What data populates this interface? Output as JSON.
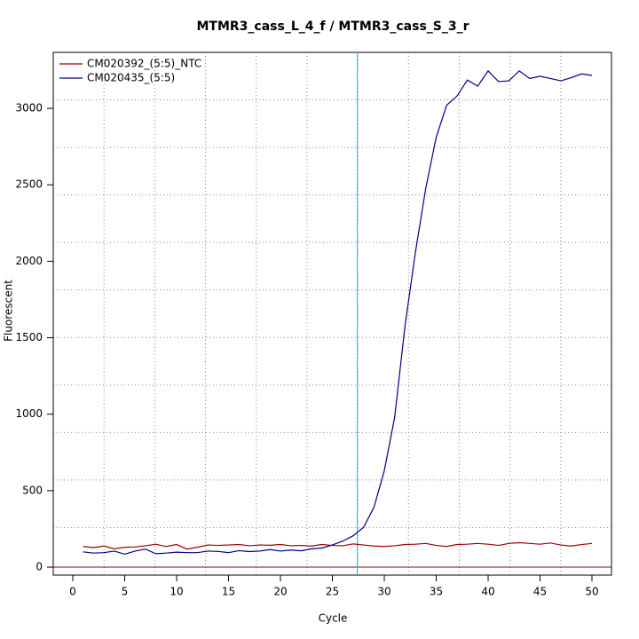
{
  "chart_data": {
    "type": "line",
    "title": "MTMR3_cass_L_4_f / MTMR3_cass_S_3_r",
    "x_label": "Cycle",
    "y_label": "Fluorescent",
    "x": [
      1,
      2,
      3,
      4,
      5,
      6,
      7,
      8,
      9,
      10,
      11,
      12,
      13,
      14,
      15,
      16,
      17,
      18,
      19,
      20,
      21,
      22,
      23,
      24,
      25,
      26,
      27,
      28,
      29,
      30,
      31,
      32,
      33,
      34,
      35,
      36,
      37,
      38,
      39,
      40,
      41,
      42,
      43,
      44,
      45,
      46,
      47,
      48,
      49,
      50
    ],
    "series": [
      {
        "name": "CM020392_(5:5)_NTC",
        "color": "#a00000",
        "values": [
          135,
          128,
          138,
          120,
          130,
          132,
          140,
          150,
          135,
          148,
          118,
          130,
          145,
          142,
          145,
          148,
          140,
          145,
          143,
          148,
          140,
          142,
          138,
          148,
          142,
          140,
          152,
          145,
          138,
          135,
          140,
          148,
          150,
          155,
          142,
          135,
          148,
          150,
          155,
          150,
          142,
          155,
          160,
          155,
          150,
          158,
          145,
          138,
          148,
          155
        ]
      },
      {
        "name": "CM020435_(5:5)",
        "color": "#000080",
        "values": [
          100,
          92,
          95,
          105,
          85,
          105,
          118,
          88,
          92,
          98,
          95,
          95,
          105,
          103,
          95,
          108,
          102,
          105,
          115,
          105,
          112,
          107,
          120,
          125,
          145,
          170,
          205,
          260,
          390,
          630,
          980,
          1580,
          2060,
          2480,
          2810,
          3020,
          3080,
          3185,
          3145,
          3245,
          3175,
          3180,
          3245,
          3195,
          3210,
          3195,
          3180,
          3200,
          3225,
          3215
        ]
      }
    ],
    "xlim": [
      -1.88,
      51.88
    ],
    "ylim": [
      -52,
      3366
    ],
    "xticks": [
      0,
      5,
      10,
      15,
      20,
      25,
      30,
      35,
      40,
      45,
      50
    ],
    "yticks": [
      0,
      500,
      1000,
      1500,
      2000,
      2500,
      3000
    ],
    "grid": true,
    "threshold_cycle": 27.4,
    "threshold_color": "#00c8d0",
    "baseline": 0,
    "baseline_color": "#a00000",
    "legend": "top-left"
  }
}
